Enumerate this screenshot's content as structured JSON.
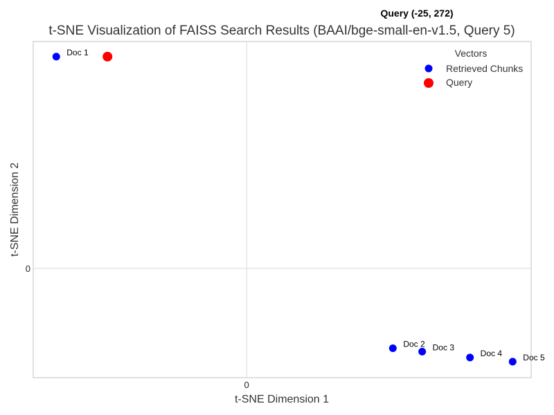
{
  "chart_data": {
    "type": "scatter",
    "title": "t-SNE Visualization of FAISS Search Results (BAAI/bge-small-en-v1.5, Query 5)",
    "annotation": "Query (-25, 272)",
    "xlabel": "t-SNE Dimension 1",
    "ylabel": "t-SNE Dimension 2",
    "xlim": [
      -75,
      100
    ],
    "ylim": [
      -130,
      270
    ],
    "xticks": [
      {
        "value": 0,
        "label": "0"
      }
    ],
    "yticks": [
      {
        "value": 0,
        "label": "0"
      }
    ],
    "grid": true,
    "legend": {
      "title": "Vectors",
      "placement": "top-right",
      "entries": [
        {
          "name": "Retrieved Chunks",
          "color": "#0000ff"
        },
        {
          "name": "Query",
          "color": "#ff0000"
        }
      ]
    },
    "series": [
      {
        "name": "Retrieved Chunks",
        "color": "#0000ff",
        "points": [
          {
            "x": -66.9,
            "y": 252,
            "label": "Doc 1"
          },
          {
            "x": 51.4,
            "y": -95,
            "label": "Doc 2"
          },
          {
            "x": 61.7,
            "y": -99,
            "label": "Doc 3"
          },
          {
            "x": 78.5,
            "y": -106,
            "label": "Doc 4"
          },
          {
            "x": 93.5,
            "y": -111,
            "label": "Doc 5"
          }
        ]
      },
      {
        "name": "Query",
        "color": "#ff0000",
        "points": [
          {
            "x": -48.9,
            "y": 252,
            "label": ""
          }
        ]
      }
    ]
  }
}
